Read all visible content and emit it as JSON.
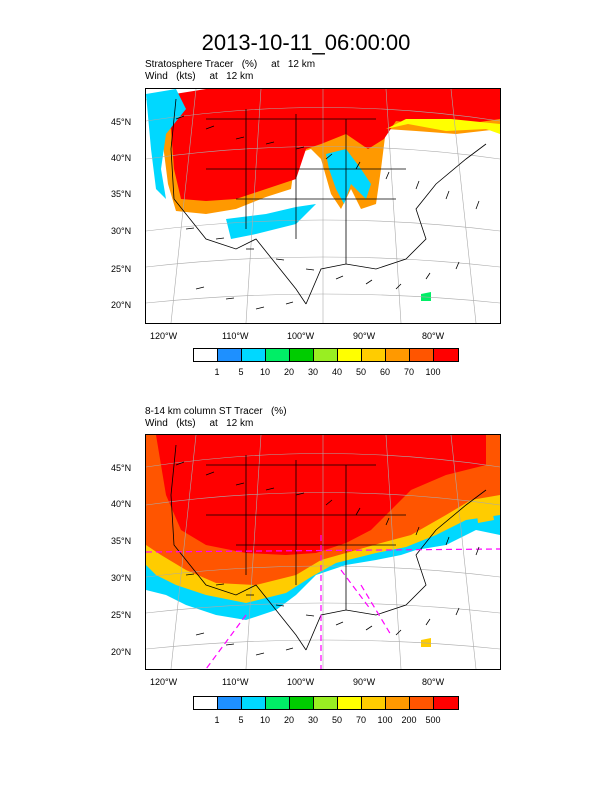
{
  "title": "2013-10-11_06:00:00",
  "panels": [
    {
      "subtitle_line1": "Stratosphere Tracer   (%)     at   12 km",
      "subtitle_line2": "Wind   (kts)     at   12 km",
      "lat_labels": [
        "45°N",
        "40°N",
        "35°N",
        "30°N",
        "25°N",
        "20°N"
      ],
      "lon_labels": [
        "120°W",
        "110°W",
        "100°W",
        "90°W",
        "80°W"
      ],
      "legend_labels": [
        "1",
        "5",
        "10",
        "20",
        "30",
        "40",
        "50",
        "60",
        "70",
        "100"
      ]
    },
    {
      "subtitle_line1": "8-14 km column ST Tracer   (%)",
      "subtitle_line2": "Wind   (kts)     at   12 km",
      "lat_labels": [
        "45°N",
        "40°N",
        "35°N",
        "30°N",
        "25°N",
        "20°N"
      ],
      "lon_labels": [
        "120°W",
        "110°W",
        "100°W",
        "90°W",
        "80°W"
      ],
      "legend_labels": [
        "1",
        "5",
        "10",
        "20",
        "30",
        "50",
        "70",
        "100",
        "200",
        "500"
      ]
    }
  ],
  "colors": [
    "#ffffff",
    "#1e90ff",
    "#00d8ff",
    "#00ee66",
    "#00cc00",
    "#99ee22",
    "#ffff00",
    "#ffcc00",
    "#ff9900",
    "#ff5500",
    "#ff0000"
  ]
}
